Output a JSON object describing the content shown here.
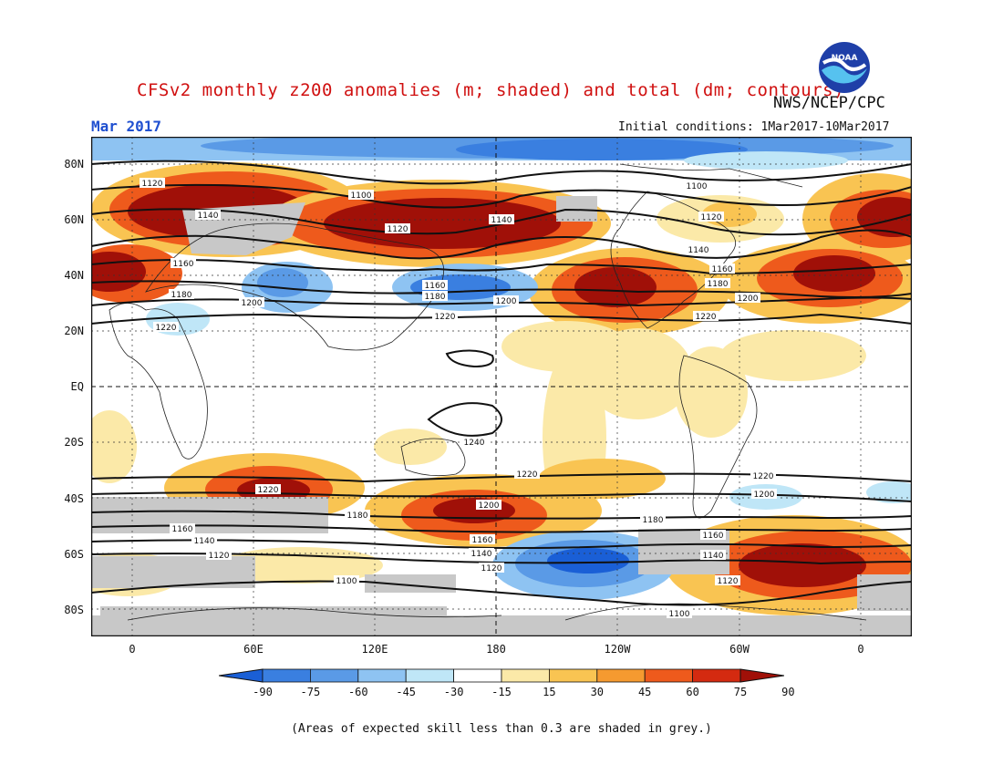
{
  "title": "CFSv2 monthly z200 anomalies (m; shaded) and total (dm; contours)",
  "agency": "NWS/NCEP/CPC",
  "logo_text": "NOAA",
  "month": "Mar 2017",
  "initial_conditions": "Initial conditions: 1Mar2017-10Mar2017",
  "lat_labels": [
    "80N",
    "60N",
    "40N",
    "20N",
    "EQ",
    "20S",
    "40S",
    "60S",
    "80S"
  ],
  "lon_labels": [
    "0",
    "60E",
    "120E",
    "180",
    "120W",
    "60W",
    "0"
  ],
  "colorbar": {
    "labels": [
      "-90",
      "-75",
      "-60",
      "-45",
      "-30",
      "-15",
      "15",
      "30",
      "45",
      "60",
      "75",
      "90"
    ],
    "colors": [
      "#1a5fd6",
      "#3a7fe0",
      "#5a9ae6",
      "#8ec3f2",
      "#bfe6f7",
      "#ffffff",
      "#fbe9a8",
      "#f9c452",
      "#f59a30",
      "#ee5a1c",
      "#d42a10",
      "#a01008"
    ]
  },
  "contour_labels": [
    "1100",
    "1120",
    "1140",
    "1160",
    "1180",
    "1200",
    "1220",
    "1240"
  ],
  "footnote": "(Areas of expected skill less than 0.3 are shaded in grey.)"
}
